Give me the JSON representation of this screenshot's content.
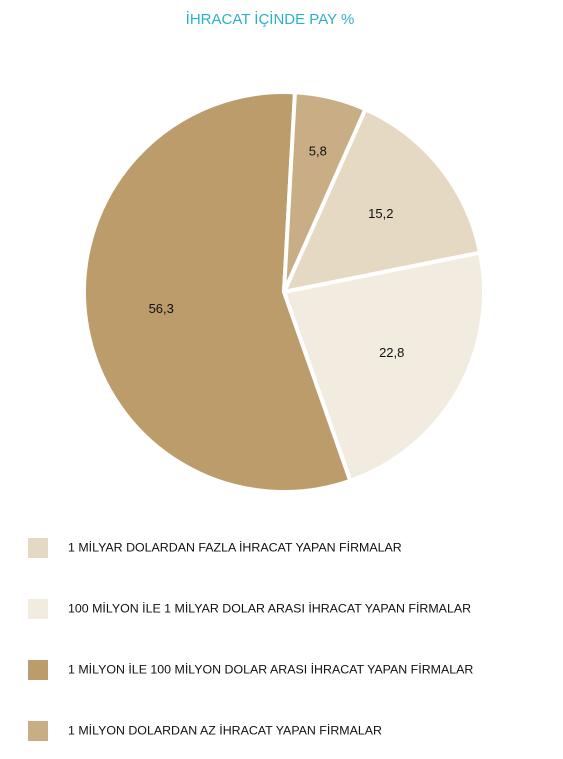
{
  "chart_data": {
    "type": "pie",
    "title": "İHRACAT İÇİNDE PAY %",
    "categories": [
      "1 MİLYAR DOLARDAN FAZLA İHRACAT YAPAN FİRMALAR",
      "100 MİLYON İLE 1 MİLYAR DOLAR ARASI İHRACAT YAPAN FİRMALAR",
      "1 MİLYON İLE 100 MİLYON DOLAR ARASI İHRACAT YAPAN FİRMALAR",
      "1 MİLYON DOLARDAN AZ İHRACAT YAPAN FİRMALAR"
    ],
    "values": [
      15.2,
      22.8,
      56.3,
      5.8
    ],
    "value_labels": [
      "15,2",
      "22,8",
      "56,3",
      "5,8"
    ],
    "colors": [
      "#e5d9c4",
      "#f1ebe0",
      "#bb9c6a",
      "#c9ad84"
    ],
    "legend": "bottom"
  }
}
